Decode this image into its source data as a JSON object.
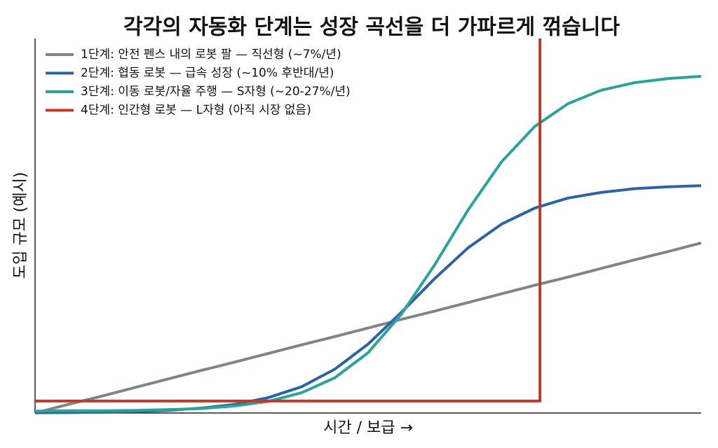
{
  "chart_data": {
    "type": "line",
    "title": "각각의 자동화 단계는 성장 곡선을 더 가파르게 꺾습니다",
    "x_label": "시간 / 보급 →",
    "y_label": "도입 규모 (예시)",
    "x": [
      0,
      5,
      10,
      15,
      20,
      25,
      30,
      35,
      40,
      45,
      50,
      55,
      60,
      65,
      70,
      75,
      80,
      85,
      90,
      95,
      100
    ],
    "xlim": [
      0,
      100
    ],
    "ylim": [
      0,
      100
    ],
    "legend": "upper left",
    "grid": false,
    "series": [
      {
        "name": "1단계: 안전 펜스 내의 로봇 팔 — 직선형 (~7%/년)",
        "color": "#7f8583",
        "values": [
          0,
          2.3,
          4.5,
          6.8,
          9.1,
          11.4,
          13.6,
          15.9,
          18.2,
          20.4,
          22.7,
          25,
          27.2,
          29.5,
          31.8,
          34.1,
          36.3,
          38.6,
          40.9,
          43.1,
          45.4
        ]
      },
      {
        "name": "2단계: 협동 로봇 — 급속 성장 (~10% 후반대/년)",
        "color": "#2d63a6",
        "values": [
          0.07,
          0.12,
          0.22,
          0.39,
          0.71,
          1.3,
          2.3,
          4.1,
          7,
          11.7,
          18.4,
          26.9,
          35.9,
          44.1,
          50.4,
          54.7,
          57.4,
          58.9,
          59.9,
          60.4,
          60.7
        ]
      },
      {
        "name": "3단계: 이동 로봇/자율 주행 — S자형 (~20-27%/년)",
        "color": "#2ba39b",
        "values": [
          0.5,
          0.6,
          0.6,
          0.7,
          0.9,
          1.2,
          1.9,
          3.1,
          5.4,
          9.4,
          16.1,
          26.4,
          39.6,
          54.2,
          67,
          76.5,
          82.6,
          86.2,
          88.2,
          89.3,
          89.9
        ]
      },
      {
        "name": "4단계: 인간형 로봇 — L자형 (아직 시장 없음)",
        "color": "#c0392b",
        "x": [
          0,
          75.8,
          75.8
        ],
        "values": [
          3.2,
          3.2,
          100
        ]
      }
    ]
  }
}
